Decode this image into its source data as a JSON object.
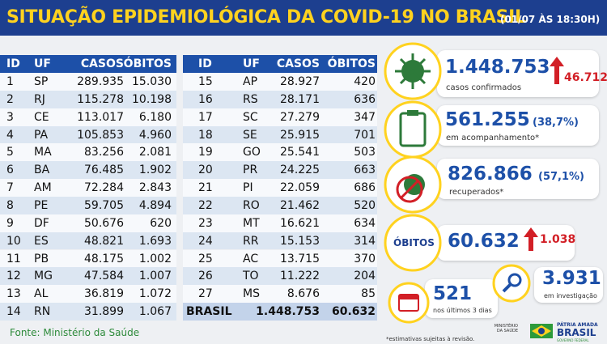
{
  "header": {
    "title": "SITUAÇÃO EPIDEMIOLÓGICA DA COVID-19 NO BRASIL",
    "date": "(01/07 ÀS 18:30H)"
  },
  "table_left": {
    "columns": [
      "ID",
      "UF",
      "CASOS",
      "ÓBITOS"
    ],
    "rows": [
      [
        "1",
        "SP",
        "289.935",
        "15.030"
      ],
      [
        "2",
        "RJ",
        "115.278",
        "10.198"
      ],
      [
        "3",
        "CE",
        "113.017",
        "6.180"
      ],
      [
        "4",
        "PA",
        "105.853",
        "4.960"
      ],
      [
        "5",
        "MA",
        "83.256",
        "2.081"
      ],
      [
        "6",
        "BA",
        "76.485",
        "1.902"
      ],
      [
        "7",
        "AM",
        "72.284",
        "2.843"
      ],
      [
        "8",
        "PE",
        "59.705",
        "4.894"
      ],
      [
        "9",
        "DF",
        "50.676",
        "620"
      ],
      [
        "10",
        "ES",
        "48.821",
        "1.693"
      ],
      [
        "11",
        "PB",
        "48.175",
        "1.002"
      ],
      [
        "12",
        "MG",
        "47.584",
        "1.007"
      ],
      [
        "13",
        "AL",
        "36.819",
        "1.072"
      ],
      [
        "14",
        "RN",
        "31.899",
        "1.067"
      ]
    ]
  },
  "table_right": {
    "columns": [
      "ID",
      "UF",
      "CASOS",
      "ÓBITOS"
    ],
    "rows": [
      [
        "15",
        "AP",
        "28.927",
        "420"
      ],
      [
        "16",
        "RS",
        "28.171",
        "636"
      ],
      [
        "17",
        "SC",
        "27.279",
        "347"
      ],
      [
        "18",
        "SE",
        "25.915",
        "701"
      ],
      [
        "19",
        "GO",
        "25.541",
        "503"
      ],
      [
        "20",
        "PR",
        "24.225",
        "663"
      ],
      [
        "21",
        "PI",
        "22.059",
        "686"
      ],
      [
        "22",
        "RO",
        "21.462",
        "520"
      ],
      [
        "23",
        "MT",
        "16.621",
        "634"
      ],
      [
        "24",
        "RR",
        "15.153",
        "314"
      ],
      [
        "25",
        "AC",
        "13.715",
        "370"
      ],
      [
        "26",
        "TO",
        "11.222",
        "204"
      ],
      [
        "27",
        "MS",
        "8.676",
        "85"
      ]
    ],
    "total": [
      "BRASIL",
      "1.448.753",
      "60.632"
    ]
  },
  "stats": {
    "confirmed": {
      "value": "1.448.753",
      "increase": "46.712",
      "label": "casos confirmados"
    },
    "monitoring": {
      "value": "561.255",
      "percent": "(38,7%)",
      "label": "em acompanhamento*"
    },
    "recovered": {
      "value": "826.866",
      "percent": "(57,1%)",
      "label": "recuperados*"
    },
    "deaths": {
      "badge": "ÓBITOS",
      "value": "60.632",
      "increase": "1.038"
    },
    "recent_deaths": {
      "value": "521",
      "label": "nos últimos 3 dias"
    },
    "investigation": {
      "value": "3.931",
      "label": "em investigação"
    }
  },
  "footer": {
    "source": "Fonte: Ministério da Saúde",
    "note": "*estimativas sujeitas à revisão.",
    "ministry": "MINISTÉRIO DA SAÚDE",
    "motto": "PÁTRIA AMADA",
    "brand": "BRASIL",
    "government": "GOVERNO FEDERAL"
  }
}
